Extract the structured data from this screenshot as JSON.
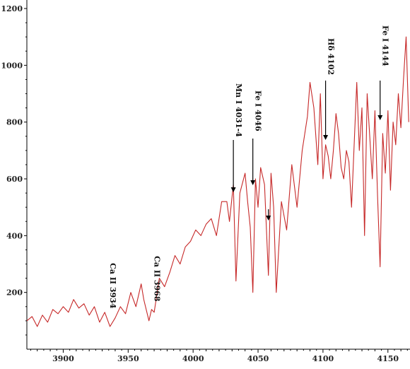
{
  "chart_data": {
    "type": "line",
    "title": "",
    "xlabel": "",
    "ylabel": "",
    "xlim": [
      3872,
      4167
    ],
    "ylim": [
      0,
      1230
    ],
    "x_ticks": [
      3900,
      3950,
      4000,
      4050,
      4100,
      4150
    ],
    "y_ticks": [
      200,
      400,
      600,
      800,
      1000,
      1200
    ],
    "grid": false,
    "line_color": "#c62828",
    "series": [
      {
        "x": [
          3872,
          3876,
          3880,
          3884,
          3888,
          3892,
          3896,
          3900,
          3904,
          3908,
          3912,
          3916,
          3920,
          3924,
          3928,
          3932,
          3936,
          3940,
          3944,
          3948,
          3952,
          3956,
          3960,
          3962,
          3966,
          3968,
          3970,
          3974,
          3978,
          3982,
          3986,
          3990,
          3994,
          3998,
          4002,
          4006,
          4010,
          4014,
          4018,
          4022,
          4026,
          4028,
          4031,
          4033,
          4036,
          4040,
          4042,
          4044,
          4046,
          4048,
          4050,
          4052,
          4055,
          4058,
          4060,
          4062,
          4064,
          4068,
          4072,
          4076,
          4080,
          4084,
          4088,
          4090,
          4093,
          4096,
          4098,
          4100,
          4102,
          4104,
          4106,
          4108,
          4110,
          4112,
          4114,
          4116,
          4118,
          4120,
          4122,
          4126,
          4128,
          4130,
          4132,
          4134,
          4138,
          4140,
          4142,
          4144,
          4146,
          4148,
          4150,
          4152,
          4154,
          4156,
          4158,
          4160,
          4162,
          4164,
          4166
        ],
        "y": [
          100,
          115,
          80,
          120,
          95,
          140,
          125,
          150,
          130,
          175,
          145,
          160,
          120,
          150,
          95,
          130,
          80,
          110,
          150,
          125,
          200,
          150,
          230,
          175,
          100,
          140,
          130,
          250,
          220,
          270,
          330,
          300,
          360,
          380,
          420,
          400,
          440,
          460,
          400,
          520,
          520,
          450,
          580,
          240,
          550,
          620,
          520,
          430,
          200,
          600,
          500,
          640,
          580,
          260,
          620,
          500,
          200,
          520,
          420,
          650,
          500,
          700,
          820,
          940,
          850,
          650,
          900,
          600,
          720,
          680,
          600,
          700,
          830,
          760,
          640,
          600,
          700,
          660,
          500,
          940,
          700,
          850,
          400,
          900,
          600,
          840,
          540,
          290,
          760,
          620,
          840,
          560,
          800,
          720,
          900,
          780,
          950,
          1100,
          800
        ]
      }
    ],
    "annotations": [
      {
        "label": "Ca II 3934",
        "x": 3934
      },
      {
        "label": "Ca II 3968",
        "x": 3968
      },
      {
        "label": "Mn I 4031-4",
        "x": 4031
      },
      {
        "label": "Fe I 4046",
        "x": 4046
      },
      {
        "label": "Hδ 4102",
        "x": 4102
      },
      {
        "label": "Fe I 4144",
        "x": 4144
      }
    ]
  }
}
